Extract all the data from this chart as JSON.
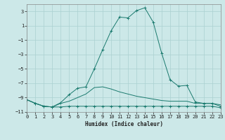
{
  "xlabel": "Humidex (Indice chaleur)",
  "bg_color": "#cce8e8",
  "line_color": "#1a7a6e",
  "grid_color": "#aad0d0",
  "xlim": [
    0,
    23
  ],
  "ylim": [
    -11,
    4
  ],
  "xticks": [
    0,
    1,
    2,
    3,
    4,
    5,
    6,
    7,
    8,
    9,
    10,
    11,
    12,
    13,
    14,
    15,
    16,
    17,
    18,
    19,
    20,
    21,
    22,
    23
  ],
  "yticks": [
    -11,
    -9,
    -7,
    -5,
    -3,
    -1,
    1,
    3
  ],
  "series": [
    {
      "x": [
        0,
        1,
        2,
        3,
        4,
        5,
        6,
        7,
        8,
        9,
        10,
        11,
        12,
        13,
        14,
        15,
        16,
        17,
        18,
        19,
        20,
        21,
        22,
        23
      ],
      "y": [
        -9.3,
        -9.8,
        -10.2,
        -10.3,
        -10.3,
        -10.2,
        -10.2,
        -10.2,
        -10.2,
        -10.2,
        -10.2,
        -10.2,
        -10.2,
        -10.2,
        -10.2,
        -10.2,
        -10.2,
        -10.2,
        -10.2,
        -10.2,
        -10.2,
        -10.2,
        -10.2,
        -10.4
      ],
      "marker": "+",
      "linestyle": "-"
    },
    {
      "x": [
        0,
        1,
        2,
        3,
        4,
        5,
        6,
        7,
        8,
        9,
        10,
        11,
        12,
        13,
        14,
        15,
        16,
        17,
        18,
        19,
        20,
        21,
        22,
        23
      ],
      "y": [
        -9.3,
        -9.8,
        -10.2,
        -10.3,
        -9.8,
        -9.5,
        -9.0,
        -8.5,
        -7.6,
        -7.5,
        -7.8,
        -8.2,
        -8.5,
        -8.8,
        -9.0,
        -9.2,
        -9.4,
        -9.5,
        -9.5,
        -9.5,
        -9.8,
        -9.8,
        -9.8,
        -10.0
      ],
      "marker": null,
      "linestyle": "-"
    },
    {
      "x": [
        0,
        1,
        2,
        3,
        4,
        5,
        6,
        7,
        8,
        9,
        10,
        11,
        12,
        13,
        14,
        15,
        16,
        17,
        18,
        19,
        20,
        21,
        22,
        23
      ],
      "y": [
        -9.3,
        -9.8,
        -10.2,
        -10.3,
        -9.7,
        -8.6,
        -7.7,
        -7.5,
        -5.0,
        -2.3,
        0.3,
        2.2,
        2.1,
        3.1,
        3.5,
        1.5,
        -2.8,
        -6.5,
        -7.4,
        -7.3,
        -9.6,
        -9.8,
        -9.8,
        -10.2
      ],
      "marker": "+",
      "linestyle": "-"
    }
  ]
}
